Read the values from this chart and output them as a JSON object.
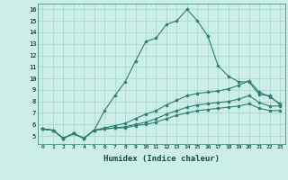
{
  "xlabel": "Humidex (Indice chaleur)",
  "background_color": "#cceee8",
  "grid_color": "#aad8d2",
  "line_color": "#2e7d70",
  "xlim": [
    -0.5,
    23.5
  ],
  "ylim": [
    4.3,
    16.5
  ],
  "yticks": [
    5,
    6,
    7,
    8,
    9,
    10,
    11,
    12,
    13,
    14,
    15,
    16
  ],
  "xticks": [
    0,
    1,
    2,
    3,
    4,
    5,
    6,
    7,
    8,
    9,
    10,
    11,
    12,
    13,
    14,
    15,
    16,
    17,
    18,
    19,
    20,
    21,
    22,
    23
  ],
  "lines": [
    {
      "x": [
        0,
        1,
        2,
        3,
        4,
        5,
        6,
        7,
        8,
        9,
        10,
        11,
        12,
        13,
        14,
        15,
        16,
        17,
        18,
        19,
        20,
        21,
        22,
        23
      ],
      "y": [
        5.6,
        5.5,
        4.8,
        5.2,
        4.8,
        5.5,
        7.2,
        8.5,
        9.7,
        11.5,
        13.2,
        13.5,
        14.7,
        15.0,
        16.0,
        15.0,
        13.7,
        11.1,
        10.2,
        9.7,
        9.7,
        8.6,
        8.5,
        7.7
      ]
    },
    {
      "x": [
        0,
        1,
        2,
        3,
        4,
        5,
        6,
        7,
        8,
        9,
        10,
        11,
        12,
        13,
        14,
        15,
        16,
        17,
        18,
        19,
        20,
        21,
        22,
        23
      ],
      "y": [
        5.6,
        5.5,
        4.8,
        5.2,
        4.8,
        5.5,
        5.7,
        5.9,
        6.1,
        6.5,
        6.9,
        7.2,
        7.7,
        8.1,
        8.5,
        8.7,
        8.8,
        8.9,
        9.1,
        9.4,
        9.8,
        8.8,
        8.4,
        7.8
      ]
    },
    {
      "x": [
        0,
        1,
        2,
        3,
        4,
        5,
        6,
        7,
        8,
        9,
        10,
        11,
        12,
        13,
        14,
        15,
        16,
        17,
        18,
        19,
        20,
        21,
        22,
        23
      ],
      "y": [
        5.6,
        5.5,
        4.8,
        5.2,
        4.8,
        5.5,
        5.6,
        5.7,
        5.8,
        6.0,
        6.2,
        6.5,
        6.9,
        7.2,
        7.5,
        7.7,
        7.8,
        7.9,
        8.0,
        8.2,
        8.5,
        7.9,
        7.6,
        7.6
      ]
    },
    {
      "x": [
        0,
        1,
        2,
        3,
        4,
        5,
        6,
        7,
        8,
        9,
        10,
        11,
        12,
        13,
        14,
        15,
        16,
        17,
        18,
        19,
        20,
        21,
        22,
        23
      ],
      "y": [
        5.6,
        5.5,
        4.8,
        5.2,
        4.8,
        5.5,
        5.6,
        5.7,
        5.7,
        5.9,
        6.0,
        6.2,
        6.5,
        6.8,
        7.0,
        7.2,
        7.3,
        7.4,
        7.5,
        7.6,
        7.8,
        7.4,
        7.2,
        7.2
      ]
    }
  ]
}
